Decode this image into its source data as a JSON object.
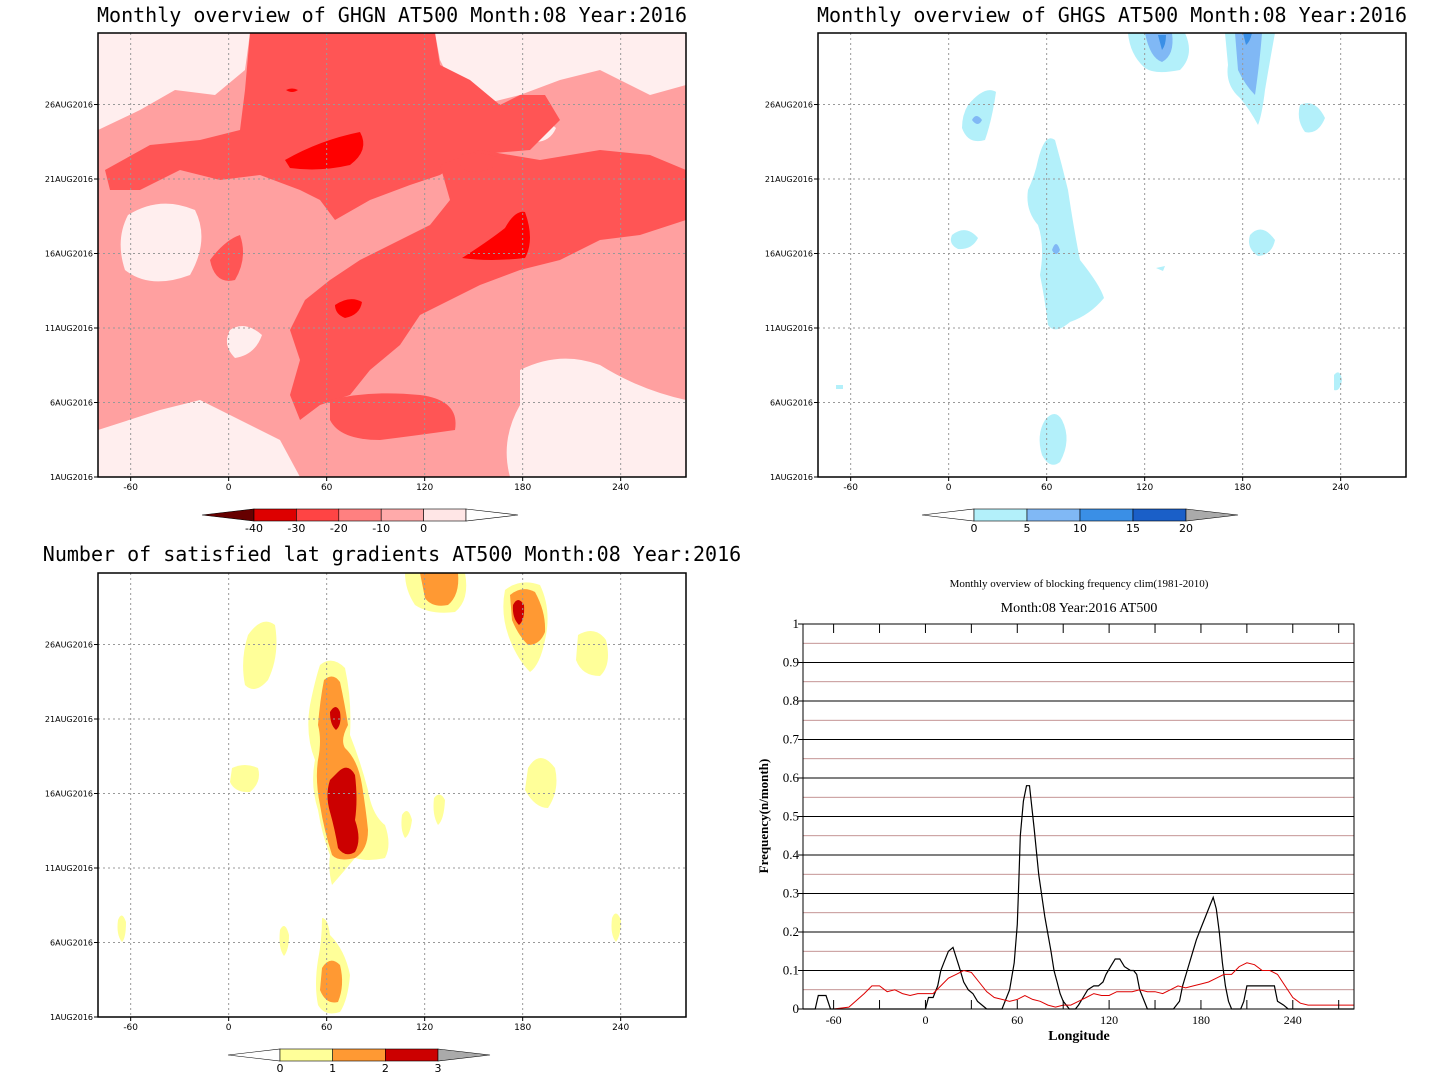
{
  "chart_data": [
    {
      "type": "heatmap",
      "title": "Monthly overview of GHGN AT500 Month:08 Year:2016",
      "x_ticks": [
        "-60",
        "0",
        "60",
        "120",
        "180",
        "240"
      ],
      "y_ticks": [
        "1AUG2016",
        "6AUG2016",
        "11AUG2016",
        "16AUG2016",
        "21AUG2016",
        "26AUG2016"
      ],
      "xlim": [
        -80,
        280
      ],
      "colorbar": {
        "levels": [
          "-40",
          "-30",
          "-20",
          "-10",
          "0"
        ],
        "colors": [
          "#660000",
          "#dd0000",
          "#ff4444",
          "#ff8080",
          "#ffaaaa",
          "#ffe6e6",
          "#ffffff"
        ]
      },
      "regions": [
        {
          "level": "-30",
          "color": "#ff0000",
          "x": 70,
          "day": 22.5
        },
        {
          "level": "-30",
          "color": "#ff0000",
          "x": 180,
          "day": 17.5
        },
        {
          "level": "-30",
          "color": "#ff0000",
          "x": 78,
          "day": 13
        },
        {
          "level": "-20",
          "color": "#ff5555",
          "x": 60,
          "day": 23.5
        },
        {
          "level": "-20",
          "color": "#ff5555",
          "x": 150,
          "day": 16.5
        },
        {
          "level": "-20",
          "color": "#ff5555",
          "x": 90,
          "day": 10
        },
        {
          "level": "-10",
          "color": "#ffa0a0",
          "x": 40,
          "day": 15
        },
        {
          "level": "0",
          "color": "#ffeeee",
          "x": -40,
          "day": 16
        },
        {
          "level": "0",
          "color": "#ffeeee",
          "x": 220,
          "day": 6
        }
      ]
    },
    {
      "type": "heatmap",
      "title": "Monthly overview of GHGS AT500 Month:08 Year:2016",
      "x_ticks": [
        "-60",
        "0",
        "60",
        "120",
        "180",
        "240"
      ],
      "y_ticks": [
        "1AUG2016",
        "6AUG2016",
        "11AUG2016",
        "16AUG2016",
        "21AUG2016",
        "26AUG2016"
      ],
      "xlim": [
        -80,
        280
      ],
      "colorbar": {
        "levels": [
          "0",
          "5",
          "10",
          "15",
          "20"
        ],
        "colors": [
          "#ffffff",
          "#b3f0fa",
          "#80b8f5",
          "#3a8fe6",
          "#1a5fc8",
          "#aaaaaa"
        ]
      },
      "regions": [
        {
          "level": "5",
          "color": "#b3f0fa",
          "x": 63,
          "day": 14
        },
        {
          "level": "5",
          "color": "#b3f0fa",
          "x": 63,
          "day": 3
        },
        {
          "level": "5",
          "color": "#b3f0fa",
          "x": 18,
          "day": 25.5
        },
        {
          "level": "5",
          "color": "#b3f0fa",
          "x": 130,
          "day": 29.5
        },
        {
          "level": "5",
          "color": "#b3f0fa",
          "x": 185,
          "day": 28.5
        },
        {
          "level": "10",
          "color": "#80b8f5",
          "x": 128,
          "day": 29.8
        },
        {
          "level": "10",
          "color": "#80b8f5",
          "x": 185,
          "day": 29
        }
      ]
    },
    {
      "type": "heatmap",
      "title": "Number of satisfied lat gradients AT500 Month:08 Year:2016",
      "x_ticks": [
        "-60",
        "0",
        "60",
        "120",
        "180",
        "240"
      ],
      "y_ticks": [
        "1AUG2016",
        "6AUG2016",
        "11AUG2016",
        "16AUG2016",
        "21AUG2016",
        "26AUG2016"
      ],
      "xlim": [
        -80,
        280
      ],
      "colorbar": {
        "levels": [
          "0",
          "1",
          "2",
          "3"
        ],
        "colors": [
          "#ffffff",
          "#ffff99",
          "#ff9933",
          "#cc0000",
          "#aaaaaa"
        ]
      },
      "regions": [
        {
          "level": "1",
          "color": "#ffff99",
          "x": 65,
          "day": 16
        },
        {
          "level": "2",
          "color": "#ff9933",
          "x": 70,
          "day": 16
        },
        {
          "level": "3",
          "color": "#cc0000",
          "x": 70,
          "day": 15.5
        },
        {
          "level": "3",
          "color": "#cc0000",
          "x": 178,
          "day": 28
        },
        {
          "level": "2",
          "color": "#ff9933",
          "x": 125,
          "day": 30
        },
        {
          "level": "1",
          "color": "#ffff99",
          "x": 25,
          "day": 26
        }
      ]
    },
    {
      "type": "line",
      "title": "Monthly overview of blocking frequency clim(1981-2010)",
      "subtitle": "Month:08 Year:2016  AT500",
      "xlabel": "Longitude",
      "ylabel": "Frequency(n/month)",
      "x_ticks": [
        "-60",
        "0",
        "60",
        "120",
        "180",
        "240"
      ],
      "y_ticks": [
        "0",
        "0.1",
        "0.2",
        "0.3",
        "0.4",
        "0.5",
        "0.6",
        "0.7",
        "0.8",
        "0.9",
        "1"
      ],
      "xlim": [
        -80,
        280
      ],
      "ylim": [
        0,
        1
      ],
      "series": [
        {
          "color": "#000000",
          "x": [
            -80,
            -72,
            -70,
            -65,
            -62,
            0,
            2,
            5,
            8,
            10,
            12,
            15,
            18,
            22,
            25,
            28,
            31,
            34,
            40,
            50,
            55,
            58,
            60,
            61,
            62,
            64,
            66,
            68,
            71,
            74,
            78,
            82,
            84,
            86,
            88,
            90,
            92,
            94,
            96,
            98,
            100,
            103,
            106,
            110,
            113,
            116,
            118,
            121,
            124,
            127,
            130,
            134,
            136,
            138,
            140,
            142,
            145,
            148,
            150,
            152,
            155,
            158,
            162,
            166,
            168,
            171,
            174,
            177,
            180,
            183,
            186,
            188,
            190,
            192,
            194,
            196,
            198,
            200,
            204,
            206,
            208,
            210,
            212,
            214,
            216,
            218,
            220,
            222,
            224,
            226,
            228,
            230,
            234,
            237,
            240,
            243,
            246,
            250,
            280
          ],
          "y": [
            0,
            0,
            0.035,
            0.035,
            0,
            0,
            0.03,
            0.03,
            0.06,
            0.1,
            0.12,
            0.15,
            0.16,
            0.11,
            0.07,
            0.05,
            0.04,
            0.02,
            0,
            0,
            0.05,
            0.12,
            0.22,
            0.33,
            0.45,
            0.54,
            0.58,
            0.58,
            0.47,
            0.35,
            0.24,
            0.15,
            0.1,
            0.07,
            0.04,
            0.02,
            0.01,
            0,
            0,
            0,
            0.01,
            0.03,
            0.05,
            0.06,
            0.06,
            0.07,
            0.09,
            0.11,
            0.13,
            0.13,
            0.11,
            0.1,
            0.1,
            0.09,
            0.05,
            0.03,
            0,
            0,
            0,
            0,
            0,
            0,
            0,
            0.02,
            0.06,
            0.1,
            0.14,
            0.18,
            0.21,
            0.24,
            0.27,
            0.29,
            0.26,
            0.2,
            0.12,
            0.06,
            0.02,
            0,
            0,
            0,
            0.02,
            0.06,
            0.06,
            0.06,
            0.06,
            0.06,
            0.06,
            0.06,
            0.06,
            0.06,
            0.06,
            0.02,
            0.01,
            0,
            0,
            0,
            0,
            0,
            0
          ]
        },
        {
          "color": "#dd0000",
          "x": [
            -80,
            -60,
            -50,
            -40,
            -35,
            -30,
            -25,
            -20,
            -15,
            -10,
            -5,
            0,
            5,
            10,
            15,
            20,
            25,
            30,
            35,
            40,
            45,
            50,
            55,
            60,
            65,
            70,
            75,
            80,
            85,
            90,
            95,
            100,
            105,
            110,
            115,
            120,
            125,
            130,
            135,
            140,
            145,
            150,
            155,
            160,
            165,
            170,
            175,
            180,
            185,
            190,
            195,
            200,
            205,
            210,
            215,
            220,
            225,
            230,
            235,
            240,
            245,
            250,
            255,
            260,
            265,
            270,
            275,
            280
          ],
          "y": [
            0,
            0,
            0.005,
            0.04,
            0.06,
            0.06,
            0.045,
            0.05,
            0.04,
            0.035,
            0.04,
            0.04,
            0.04,
            0.06,
            0.08,
            0.09,
            0.1,
            0.095,
            0.07,
            0.045,
            0.03,
            0.025,
            0.02,
            0.025,
            0.035,
            0.025,
            0.02,
            0.01,
            0.005,
            0.01,
            0.01,
            0.02,
            0.03,
            0.04,
            0.035,
            0.035,
            0.045,
            0.045,
            0.045,
            0.05,
            0.045,
            0.045,
            0.04,
            0.05,
            0.06,
            0.055,
            0.06,
            0.065,
            0.07,
            0.08,
            0.09,
            0.09,
            0.11,
            0.12,
            0.115,
            0.1,
            0.1,
            0.09,
            0.06,
            0.03,
            0.015,
            0.01,
            0.01,
            0.01,
            0.01,
            0.01,
            0.01,
            0.01
          ]
        }
      ]
    }
  ]
}
